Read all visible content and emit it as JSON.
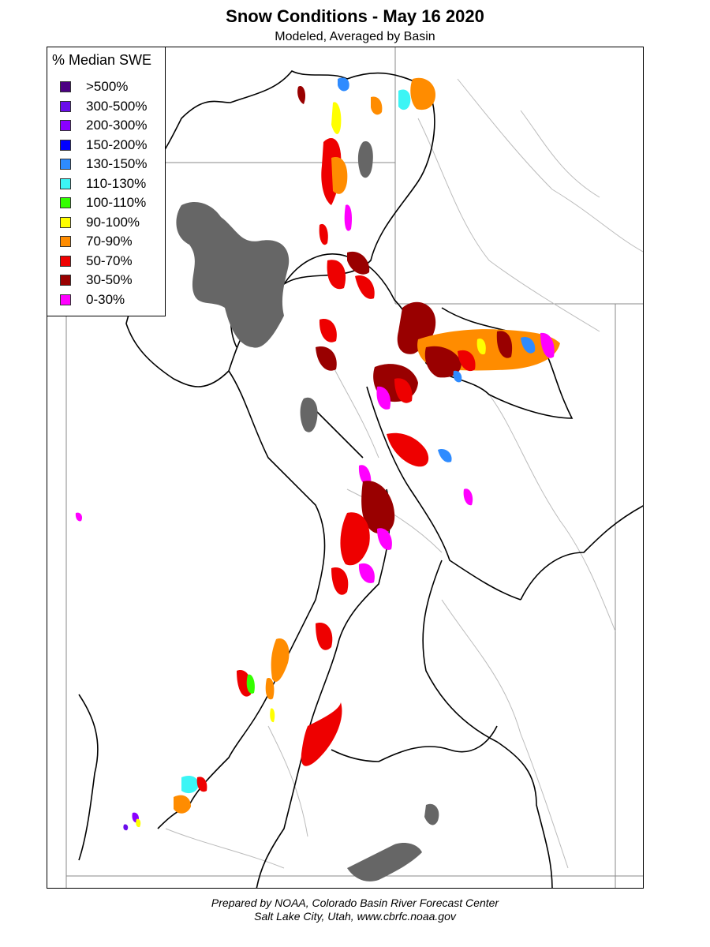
{
  "title": "Snow Conditions - May 16 2020",
  "subtitle": "Modeled, Averaged by Basin",
  "legend": {
    "title": "% Median SWE",
    "items": [
      {
        "label": ">500%",
        "color": "#4B0082"
      },
      {
        "label": "300-500%",
        "color": "#6A0DEB"
      },
      {
        "label": "200-300%",
        "color": "#8A00FF"
      },
      {
        "label": "150-200%",
        "color": "#0000FF"
      },
      {
        "label": "130-150%",
        "color": "#2E8BFF"
      },
      {
        "label": "110-130%",
        "color": "#3CF5F5"
      },
      {
        "label": "100-110%",
        "color": "#33FF00"
      },
      {
        "label": "90-100%",
        "color": "#FFFF00"
      },
      {
        "label": "70-90%",
        "color": "#FF8C00"
      },
      {
        "label": "50-70%",
        "color": "#EE0000"
      },
      {
        "label": "30-50%",
        "color": "#990000"
      },
      {
        "label": "0-30%",
        "color": "#FF00FF"
      }
    ]
  },
  "credits": {
    "line1": "Prepared by NOAA, Colorado Basin River Forecast Center",
    "line2": "Salt Lake City, Utah, www.cbrfc.noaa.gov"
  }
}
